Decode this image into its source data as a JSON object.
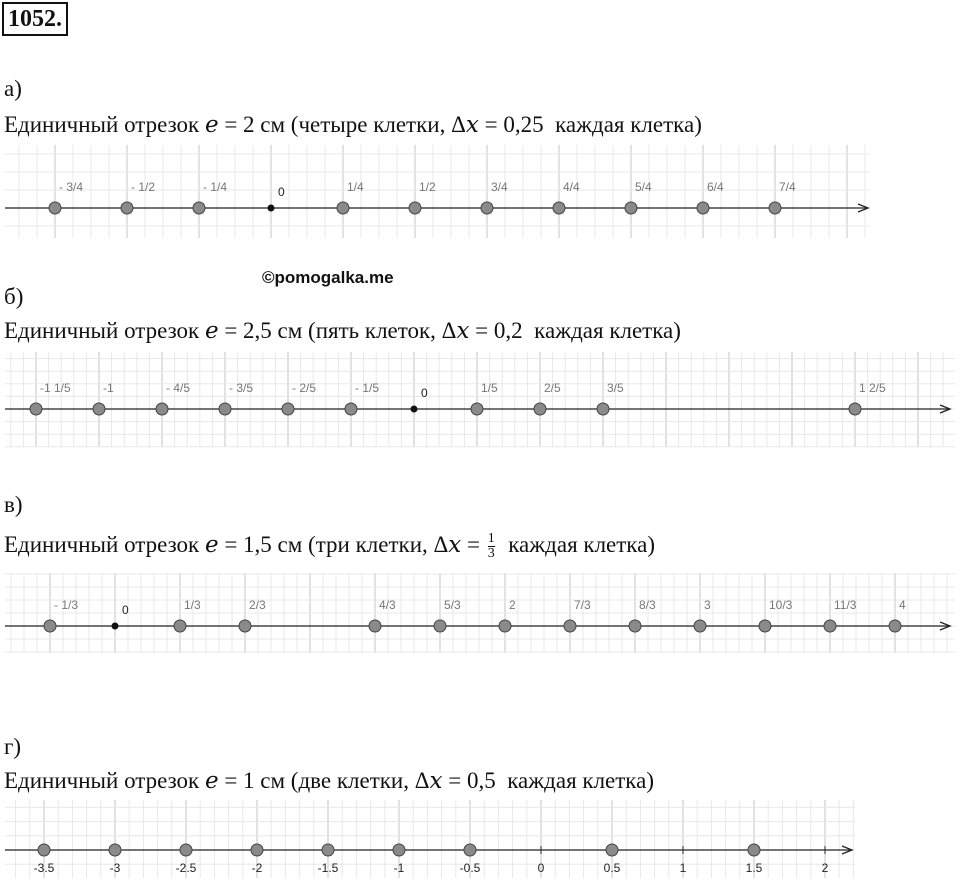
{
  "problem_number": "1052.",
  "watermark": "©pomogalka.me",
  "sections": [
    {
      "letter": "а)",
      "description": "Единичный отрезок 𝑒 = 2 см (четыре клетки, Δ𝑥 = 0,25  каждая клетка)",
      "zero_label": "0",
      "points": [
        {
          "value": -0.75,
          "label": "- 3/4"
        },
        {
          "value": -0.5,
          "label": "- 1/2"
        },
        {
          "value": -0.25,
          "label": "- 1/4"
        },
        {
          "value": 0.25,
          "label": "1/4"
        },
        {
          "value": 0.5,
          "label": "1/2"
        },
        {
          "value": 0.75,
          "label": "3/4"
        },
        {
          "value": 1,
          "label": "4/4"
        },
        {
          "value": 1.25,
          "label": "5/4"
        },
        {
          "value": 1.5,
          "label": "6/4"
        },
        {
          "value": 1.75,
          "label": "7/4"
        }
      ]
    },
    {
      "letter": "б)",
      "description": "Единичный отрезок 𝑒 = 2,5 см (пять клеток, Δ𝑥 = 0,2  каждая клетка)",
      "zero_label": "0",
      "points": [
        {
          "value": -1.2,
          "label": "-1 1/5"
        },
        {
          "value": -1,
          "label": "-1"
        },
        {
          "value": -0.8,
          "label": "- 4/5"
        },
        {
          "value": -0.6,
          "label": "- 3/5"
        },
        {
          "value": -0.4,
          "label": "- 2/5"
        },
        {
          "value": -0.2,
          "label": "- 1/5"
        },
        {
          "value": 0.2,
          "label": "1/5"
        },
        {
          "value": 0.4,
          "label": "2/5"
        },
        {
          "value": 0.6,
          "label": "3/5"
        },
        {
          "value": 1.4,
          "label": "1 2/5"
        }
      ]
    },
    {
      "letter": "в)",
      "description_before": "Единичный отрезок 𝑒 = 1,5 см (три клетки, Δ𝑥 = ",
      "fraction_numerator": "1",
      "fraction_denominator": "3",
      "description_after": "  каждая клетка)",
      "zero_label": "0",
      "points": [
        {
          "value": -0.3333,
          "label": "- 1/3"
        },
        {
          "value": 0.3333,
          "label": "1/3"
        },
        {
          "value": 0.6667,
          "label": "2/3"
        },
        {
          "value": 1.3333,
          "label": "4/3"
        },
        {
          "value": 1.6667,
          "label": "5/3"
        },
        {
          "value": 2,
          "label": "2"
        },
        {
          "value": 2.3333,
          "label": "7/3"
        },
        {
          "value": 2.6667,
          "label": "8/3"
        },
        {
          "value": 3,
          "label": "3"
        },
        {
          "value": 3.3333,
          "label": "10/3"
        },
        {
          "value": 3.6667,
          "label": "11/3"
        },
        {
          "value": 4,
          "label": "4"
        }
      ]
    },
    {
      "letter": "г)",
      "description": "Единичный отрезок 𝑒 = 1 см (две клетки, Δ𝑥 = 0,5  каждая клетка)",
      "ticks": [
        {
          "value": -3.5,
          "label": "-3.5"
        },
        {
          "value": -3,
          "label": "-3"
        },
        {
          "value": -2.5,
          "label": "-2.5"
        },
        {
          "value": -2,
          "label": "-2"
        },
        {
          "value": -1.5,
          "label": "-1.5"
        },
        {
          "value": -1,
          "label": "-1"
        },
        {
          "value": -0.5,
          "label": "-0.5"
        },
        0,
        {
          "value": 0.5,
          "label": "0.5"
        },
        1,
        {
          "value": 1.5,
          "label": "1.5"
        },
        2
      ],
      "points": [
        -3.5,
        -3,
        -2.5,
        -2,
        -1.5,
        -1,
        -0.5,
        0.5,
        1.5
      ]
    }
  ]
}
